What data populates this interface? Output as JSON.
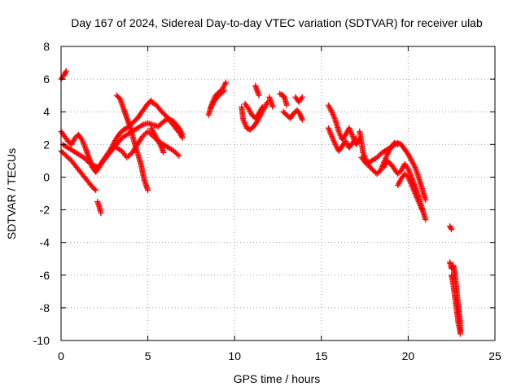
{
  "chart_data": {
    "type": "scatter",
    "title": "Day 167 of 2024, Sidereal Day-to-day VTEC variation (SDTVAR) for receiver ulab",
    "xlabel": "GPS time / hours",
    "ylabel": "SDTVAR / TECUs",
    "xlim": [
      0,
      25
    ],
    "ylim": [
      -10,
      8
    ],
    "x_ticks": [
      0,
      5,
      10,
      15,
      20,
      25
    ],
    "y_ticks": [
      -10,
      -8,
      -6,
      -4,
      -2,
      0,
      2,
      4,
      6,
      8
    ],
    "grid": true,
    "marker": "+",
    "marker_color": "#ff0000",
    "series": [
      {
        "name": "SDTVAR",
        "segments": [
          [
            [
              0.0,
              6.0
            ],
            [
              0.2,
              6.3
            ],
            [
              0.3,
              6.5
            ]
          ],
          [
            [
              0.0,
              2.8
            ],
            [
              0.2,
              2.5
            ],
            [
              0.4,
              2.2
            ],
            [
              0.6,
              2.0
            ],
            [
              0.8,
              2.4
            ],
            [
              1.0,
              2.6
            ],
            [
              1.2,
              2.3
            ],
            [
              1.4,
              1.8
            ],
            [
              1.6,
              1.2
            ],
            [
              1.8,
              0.6
            ],
            [
              2.0,
              0.3
            ],
            [
              2.2,
              0.6
            ],
            [
              2.4,
              1.0
            ],
            [
              2.6,
              1.3
            ],
            [
              2.8,
              1.6
            ],
            [
              3.0,
              2.0
            ],
            [
              3.2,
              2.4
            ],
            [
              3.4,
              2.7
            ],
            [
              3.6,
              2.9
            ],
            [
              3.8,
              3.0
            ],
            [
              4.0,
              3.2
            ],
            [
              4.2,
              3.4
            ],
            [
              4.4,
              3.6
            ],
            [
              4.6,
              3.9
            ],
            [
              4.8,
              4.2
            ],
            [
              5.0,
              4.5
            ],
            [
              5.2,
              4.7
            ]
          ],
          [
            [
              0.0,
              1.6
            ],
            [
              0.3,
              1.3
            ],
            [
              0.6,
              1.0
            ],
            [
              0.9,
              0.6
            ],
            [
              1.2,
              0.2
            ],
            [
              1.5,
              -0.2
            ],
            [
              1.8,
              -0.6
            ],
            [
              2.0,
              -0.8
            ]
          ],
          [
            [
              0.1,
              2.0
            ],
            [
              0.4,
              1.8
            ],
            [
              0.7,
              1.6
            ],
            [
              1.0,
              1.4
            ],
            [
              1.3,
              1.2
            ],
            [
              1.6,
              0.9
            ],
            [
              1.9,
              0.7
            ],
            [
              2.1,
              0.6
            ]
          ],
          [
            [
              2.1,
              -1.5
            ],
            [
              2.2,
              -1.8
            ],
            [
              2.3,
              -2.2
            ]
          ],
          [
            [
              2.0,
              0.5
            ],
            [
              2.3,
              0.8
            ],
            [
              2.6,
              1.2
            ],
            [
              2.9,
              1.6
            ],
            [
              3.2,
              2.0
            ],
            [
              3.5,
              2.4
            ],
            [
              3.8,
              2.6
            ],
            [
              4.1,
              2.8
            ],
            [
              4.4,
              3.0
            ],
            [
              4.7,
              3.2
            ],
            [
              5.0,
              3.3
            ],
            [
              5.3,
              3.2
            ],
            [
              5.6,
              3.1
            ],
            [
              5.9,
              3.4
            ],
            [
              6.2,
              3.6
            ],
            [
              6.5,
              3.4
            ],
            [
              6.8,
              3.0
            ],
            [
              7.0,
              2.6
            ]
          ],
          [
            [
              3.2,
              5.0
            ],
            [
              3.4,
              4.8
            ],
            [
              3.6,
              4.2
            ],
            [
              3.8,
              3.6
            ],
            [
              4.0,
              3.0
            ],
            [
              4.2,
              2.2
            ],
            [
              4.4,
              1.5
            ],
            [
              4.6,
              0.8
            ],
            [
              4.8,
              -0.2
            ],
            [
              5.0,
              -0.8
            ]
          ],
          [
            [
              3.2,
              1.8
            ],
            [
              3.5,
              1.6
            ],
            [
              3.8,
              1.2
            ],
            [
              4.1,
              1.5
            ],
            [
              4.4,
              2.0
            ],
            [
              4.7,
              2.5
            ],
            [
              5.0,
              2.8
            ],
            [
              5.3,
              2.5
            ],
            [
              5.6,
              2.2
            ],
            [
              5.9,
              2.0
            ],
            [
              6.2,
              1.8
            ],
            [
              6.5,
              1.6
            ],
            [
              6.8,
              1.3
            ]
          ],
          [
            [
              5.2,
              3.0
            ],
            [
              5.4,
              2.6
            ],
            [
              5.6,
              2.2
            ],
            [
              5.8,
              1.8
            ],
            [
              5.9,
              1.5
            ]
          ],
          [
            [
              5.2,
              4.6
            ],
            [
              5.5,
              4.4
            ],
            [
              5.8,
              4.0
            ],
            [
              6.0,
              3.8
            ],
            [
              6.3,
              3.4
            ],
            [
              6.6,
              3.0
            ],
            [
              6.9,
              2.6
            ],
            [
              7.0,
              2.4
            ]
          ],
          [
            [
              8.5,
              3.8
            ],
            [
              8.7,
              4.5
            ],
            [
              8.9,
              5.0
            ],
            [
              9.1,
              5.2
            ],
            [
              9.3,
              5.4
            ],
            [
              9.5,
              5.8
            ]
          ],
          [
            [
              8.6,
              4.2
            ],
            [
              8.8,
              4.6
            ],
            [
              9.0,
              4.9
            ],
            [
              9.2,
              5.1
            ],
            [
              9.4,
              5.3
            ]
          ],
          [
            [
              10.4,
              4.3
            ],
            [
              10.5,
              3.5
            ],
            [
              10.7,
              3.0
            ],
            [
              10.9,
              2.9
            ],
            [
              11.1,
              3.1
            ],
            [
              11.3,
              3.4
            ],
            [
              11.5,
              3.8
            ],
            [
              11.7,
              4.2
            ],
            [
              11.9,
              4.6
            ]
          ],
          [
            [
              10.6,
              4.5
            ],
            [
              10.8,
              4.2
            ],
            [
              11.0,
              3.8
            ],
            [
              11.2,
              3.6
            ],
            [
              11.4,
              3.9
            ],
            [
              11.6,
              4.3
            ]
          ],
          [
            [
              11.2,
              5.6
            ],
            [
              11.3,
              5.3
            ],
            [
              11.4,
              5.0
            ]
          ],
          [
            [
              12.0,
              4.9
            ],
            [
              12.1,
              4.6
            ],
            [
              12.2,
              4.3
            ]
          ],
          [
            [
              12.6,
              5.1
            ],
            [
              12.8,
              5.0
            ],
            [
              12.9,
              4.8
            ],
            [
              13.0,
              4.4
            ]
          ],
          [
            [
              12.8,
              4.0
            ],
            [
              13.0,
              3.8
            ],
            [
              13.2,
              3.6
            ],
            [
              13.4,
              3.9
            ],
            [
              13.6,
              4.1
            ],
            [
              13.8,
              3.8
            ],
            [
              13.9,
              3.5
            ]
          ],
          [
            [
              13.5,
              4.9
            ],
            [
              13.7,
              4.6
            ],
            [
              13.9,
              4.9
            ]
          ],
          [
            [
              15.4,
              4.4
            ],
            [
              15.6,
              4.0
            ],
            [
              15.8,
              3.5
            ],
            [
              16.0,
              2.8
            ],
            [
              16.2,
              2.3
            ],
            [
              16.4,
              2.6
            ],
            [
              16.6,
              3.0
            ],
            [
              16.8,
              2.5
            ],
            [
              17.0,
              2.0
            ],
            [
              17.2,
              2.3
            ]
          ],
          [
            [
              15.4,
              3.0
            ],
            [
              15.6,
              2.5
            ],
            [
              15.8,
              2.0
            ],
            [
              16.0,
              1.6
            ],
            [
              16.2,
              1.9
            ],
            [
              16.4,
              2.2
            ],
            [
              16.6,
              1.8
            ],
            [
              16.8,
              2.1
            ],
            [
              17.0,
              2.4
            ]
          ],
          [
            [
              17.2,
              2.8
            ],
            [
              17.3,
              2.2
            ],
            [
              17.4,
              1.5
            ],
            [
              17.6,
              1.0
            ],
            [
              17.8,
              0.6
            ],
            [
              18.0,
              0.4
            ],
            [
              18.2,
              0.2
            ],
            [
              18.4,
              0.4
            ],
            [
              18.6,
              0.9
            ],
            [
              18.8,
              1.4
            ],
            [
              19.0,
              1.8
            ],
            [
              19.2,
              2.1
            ],
            [
              19.4,
              2.0
            ]
          ],
          [
            [
              17.3,
              1.2
            ],
            [
              17.6,
              0.8
            ],
            [
              17.9,
              1.0
            ],
            [
              18.2,
              1.2
            ],
            [
              18.5,
              1.5
            ],
            [
              18.8,
              1.7
            ],
            [
              19.1,
              1.9
            ],
            [
              19.4,
              2.1
            ],
            [
              19.6,
              2.0
            ],
            [
              19.8,
              1.7
            ],
            [
              20.0,
              1.4
            ],
            [
              20.2,
              1.0
            ],
            [
              20.4,
              0.6
            ],
            [
              20.6,
              0.0
            ],
            [
              20.8,
              -0.7
            ],
            [
              21.0,
              -1.4
            ]
          ],
          [
            [
              18.6,
              0.6
            ],
            [
              18.8,
              1.0
            ],
            [
              19.0,
              0.8
            ],
            [
              19.2,
              0.5
            ],
            [
              19.4,
              0.2
            ],
            [
              19.6,
              0.4
            ],
            [
              19.8,
              0.8
            ],
            [
              20.0,
              0.5
            ],
            [
              20.2,
              0.0
            ],
            [
              20.4,
              -0.6
            ],
            [
              20.6,
              -1.2
            ],
            [
              20.8,
              -1.9
            ],
            [
              21.0,
              -2.6
            ]
          ],
          [
            [
              19.4,
              -0.5
            ],
            [
              19.6,
              -0.1
            ],
            [
              19.8,
              0.2
            ],
            [
              20.0,
              0.0
            ],
            [
              20.2,
              -0.5
            ],
            [
              20.4,
              -1.0
            ],
            [
              20.6,
              -1.5
            ],
            [
              20.8,
              -2.0
            ]
          ],
          [
            [
              22.4,
              -3.0
            ],
            [
              22.5,
              -3.2
            ]
          ],
          [
            [
              22.4,
              -5.2
            ],
            [
              22.5,
              -5.6
            ],
            [
              22.6,
              -5.4
            ],
            [
              22.7,
              -6.0
            ],
            [
              22.8,
              -7.0
            ],
            [
              22.9,
              -8.0
            ],
            [
              23.0,
              -9.0
            ],
            [
              23.0,
              -9.6
            ]
          ],
          [
            [
              22.5,
              -6.0
            ],
            [
              22.6,
              -6.6
            ],
            [
              22.7,
              -7.4
            ],
            [
              22.8,
              -8.2
            ],
            [
              22.9,
              -9.0
            ],
            [
              23.0,
              -9.4
            ]
          ]
        ]
      }
    ]
  }
}
